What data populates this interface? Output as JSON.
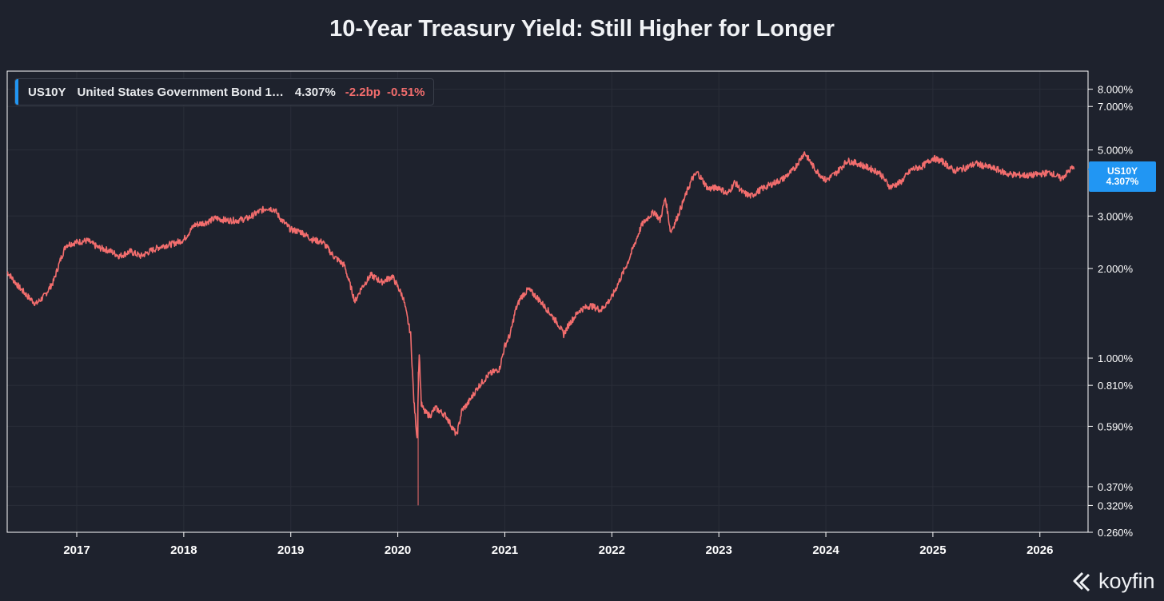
{
  "colors": {
    "background": "#1e222d",
    "series": "#f26d6d",
    "accent": "#2196f3",
    "grid": "#2a2e39",
    "frame": "#ffffff"
  },
  "legend": {
    "symbol": "US10Y",
    "name": "United States Government Bond 1…",
    "value": "4.307%",
    "change": "-2.2bp",
    "change_pct": "-0.51%"
  },
  "price_tag": {
    "symbol": "US10Y",
    "value": "4.307%"
  },
  "brand": {
    "name": "koyfin",
    "icon": "koyfin-logo-icon"
  },
  "chart_data": {
    "type": "line",
    "title": "10-Year Treasury Yield: Still Higher for Longer",
    "xlabel": "",
    "ylabel": "",
    "yscale": "log",
    "ylim": [
      0.26,
      9.2
    ],
    "xlim": [
      2016.35,
      2026.45
    ],
    "x_ticks": [
      2017,
      2018,
      2019,
      2020,
      2021,
      2022,
      2023,
      2024,
      2025,
      2026
    ],
    "x_tick_labels": [
      "2017",
      "2018",
      "2019",
      "2020",
      "2021",
      "2022",
      "2023",
      "2024",
      "2025",
      "2026"
    ],
    "y_ticks": [
      8.0,
      7.0,
      5.0,
      3.0,
      2.0,
      1.0,
      0.81,
      0.59,
      0.37,
      0.32,
      0.26
    ],
    "y_tick_labels": [
      "8.000%",
      "7.000%",
      "5.000%",
      "3.000%",
      "2.000%",
      "1.000%",
      "0.810%",
      "0.590%",
      "0.370%",
      "0.320%",
      "0.260%"
    ],
    "series": [
      {
        "name": "US10Y",
        "x": [
          2016.35,
          2016.45,
          2016.55,
          2016.62,
          2016.7,
          2016.78,
          2016.85,
          2016.9,
          2017.0,
          2017.1,
          2017.2,
          2017.3,
          2017.4,
          2017.5,
          2017.6,
          2017.7,
          2017.8,
          2017.9,
          2018.0,
          2018.1,
          2018.2,
          2018.3,
          2018.4,
          2018.5,
          2018.6,
          2018.7,
          2018.78,
          2018.85,
          2018.9,
          2019.0,
          2019.1,
          2019.2,
          2019.3,
          2019.4,
          2019.5,
          2019.6,
          2019.66,
          2019.75,
          2019.85,
          2019.95,
          2020.05,
          2020.12,
          2020.15,
          2020.18,
          2020.2,
          2020.22,
          2020.25,
          2020.3,
          2020.35,
          2020.45,
          2020.55,
          2020.6,
          2020.65,
          2020.75,
          2020.85,
          2020.95,
          2021.0,
          2021.05,
          2021.1,
          2021.15,
          2021.22,
          2021.3,
          2021.4,
          2021.5,
          2021.55,
          2021.6,
          2021.7,
          2021.8,
          2021.9,
          2022.0,
          2022.08,
          2022.15,
          2022.2,
          2022.28,
          2022.35,
          2022.4,
          2022.45,
          2022.5,
          2022.55,
          2022.6,
          2022.7,
          2022.75,
          2022.8,
          2022.9,
          2023.0,
          2023.08,
          2023.15,
          2023.22,
          2023.3,
          2023.4,
          2023.5,
          2023.6,
          2023.7,
          2023.8,
          2023.9,
          2024.0,
          2024.1,
          2024.2,
          2024.3,
          2024.4,
          2024.5,
          2024.6,
          2024.7,
          2024.8,
          2024.9,
          2025.0,
          2025.1,
          2025.2,
          2025.3,
          2025.4,
          2025.5,
          2025.6,
          2025.7,
          2025.8,
          2025.9,
          2026.0,
          2026.1,
          2026.2,
          2026.3,
          2026.32
        ],
        "values": [
          1.95,
          1.75,
          1.6,
          1.52,
          1.62,
          1.8,
          2.15,
          2.4,
          2.45,
          2.48,
          2.35,
          2.3,
          2.2,
          2.28,
          2.2,
          2.3,
          2.38,
          2.42,
          2.5,
          2.8,
          2.85,
          2.95,
          2.9,
          2.9,
          2.95,
          3.1,
          3.2,
          3.15,
          2.95,
          2.7,
          2.65,
          2.5,
          2.45,
          2.2,
          2.05,
          1.55,
          1.72,
          1.9,
          1.8,
          1.88,
          1.6,
          1.2,
          0.72,
          0.54,
          1.05,
          0.7,
          0.66,
          0.64,
          0.68,
          0.64,
          0.55,
          0.67,
          0.7,
          0.8,
          0.88,
          0.92,
          1.1,
          1.2,
          1.45,
          1.6,
          1.7,
          1.6,
          1.45,
          1.3,
          1.2,
          1.3,
          1.45,
          1.5,
          1.45,
          1.6,
          1.85,
          2.1,
          2.35,
          2.8,
          3.0,
          3.1,
          2.9,
          3.45,
          2.65,
          2.9,
          3.6,
          4.0,
          4.2,
          3.7,
          3.75,
          3.55,
          3.9,
          3.6,
          3.5,
          3.7,
          3.85,
          4.0,
          4.3,
          4.9,
          4.3,
          3.95,
          4.2,
          4.6,
          4.5,
          4.35,
          4.2,
          3.75,
          3.9,
          4.3,
          4.4,
          4.7,
          4.55,
          4.25,
          4.35,
          4.5,
          4.4,
          4.3,
          4.15,
          4.12,
          4.1,
          4.15,
          4.2,
          4.0,
          4.35,
          4.307
        ]
      }
    ],
    "last_value": 4.307
  }
}
